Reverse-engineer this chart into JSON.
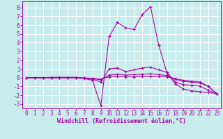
{
  "xlabel": "Windchill (Refroidissement éolien,°C)",
  "bg_color": "#c8ecec",
  "line_color": "#aa00aa",
  "grid_color": "#ffffff",
  "xlim": [
    -0.5,
    23.5
  ],
  "ylim": [
    -3.5,
    8.7
  ],
  "yticks": [
    -3,
    -2,
    -1,
    0,
    1,
    2,
    3,
    4,
    5,
    6,
    7,
    8
  ],
  "xticks": [
    0,
    1,
    2,
    3,
    4,
    5,
    6,
    7,
    8,
    9,
    10,
    11,
    12,
    13,
    14,
    15,
    16,
    17,
    18,
    19,
    20,
    21,
    22,
    23
  ],
  "curves": [
    [
      0.0,
      0.0,
      0.0,
      0.0,
      0.0,
      0.0,
      0.0,
      -0.1,
      -0.3,
      -3.2,
      4.7,
      6.3,
      5.7,
      5.5,
      7.2,
      8.1,
      3.7,
      0.5,
      -0.7,
      -1.3,
      -1.5,
      -1.6,
      -1.7,
      -1.8
    ],
    [
      0.0,
      0.0,
      0.0,
      0.05,
      0.05,
      0.05,
      0.05,
      -0.05,
      -0.15,
      -0.5,
      1.0,
      1.1,
      0.7,
      0.9,
      1.1,
      1.2,
      0.9,
      0.6,
      -0.5,
      -0.8,
      -0.85,
      -0.95,
      -1.45,
      -1.8
    ],
    [
      0.0,
      0.0,
      0.0,
      0.0,
      0.0,
      0.0,
      0.0,
      -0.05,
      -0.1,
      -0.25,
      0.3,
      0.4,
      0.3,
      0.35,
      0.4,
      0.45,
      0.35,
      0.25,
      -0.2,
      -0.4,
      -0.5,
      -0.6,
      -1.0,
      -1.8
    ],
    [
      0.0,
      0.0,
      0.0,
      0.0,
      0.0,
      0.0,
      0.0,
      -0.03,
      -0.07,
      -0.15,
      0.1,
      0.15,
      0.1,
      0.1,
      0.15,
      0.15,
      0.15,
      0.1,
      -0.1,
      -0.3,
      -0.4,
      -0.5,
      -1.0,
      -1.8
    ]
  ],
  "xlabel_fontsize": 6,
  "tick_fontsize": 5.5
}
